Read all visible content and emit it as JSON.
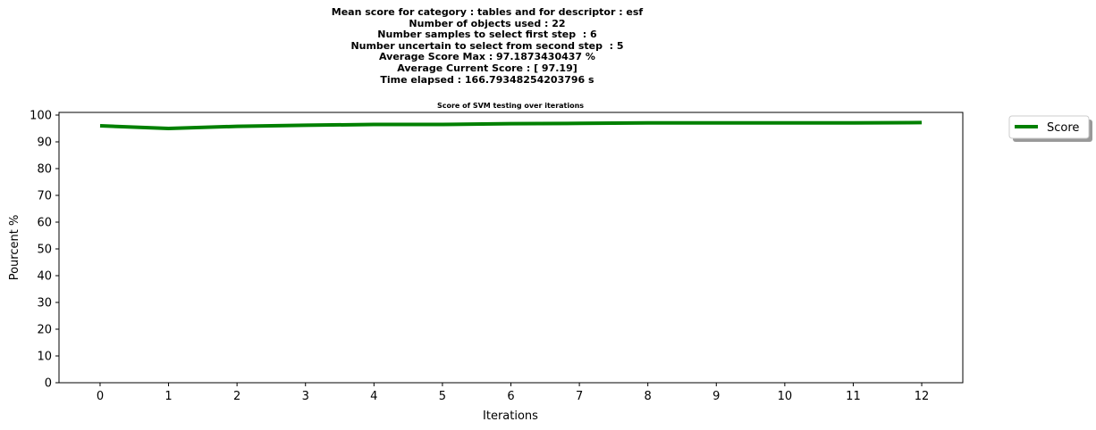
{
  "header": {
    "lines": [
      "Mean score for category : tables and for descriptor : esf",
      "Number of objects used : 22",
      "Number samples to select first step  : 6",
      "Number uncertain to select from second step  : 5",
      "Average Score Max : 97.1873430437 %",
      "Average Current Score : [ 97.19]",
      "Time elapsed : 166.79348254203796 s"
    ]
  },
  "chart_data": {
    "type": "line",
    "title": "Score of SVM testing over iterations",
    "xlabel": "Iterations",
    "ylabel": "Pourcent %",
    "x": [
      0,
      1,
      2,
      3,
      4,
      5,
      6,
      7,
      8,
      9,
      10,
      11,
      12
    ],
    "xticks": [
      "0",
      "1",
      "2",
      "3",
      "4",
      "5",
      "6",
      "7",
      "8",
      "9",
      "10",
      "11",
      "12"
    ],
    "yticks": [
      "0",
      "10",
      "20",
      "30",
      "40",
      "50",
      "60",
      "70",
      "80",
      "90",
      "100"
    ],
    "xlim": [
      -0.6,
      12.6
    ],
    "ylim": [
      0,
      101
    ],
    "series": [
      {
        "name": "Score",
        "color": "#008000",
        "values": [
          96.0,
          95.0,
          95.8,
          96.2,
          96.5,
          96.5,
          96.8,
          96.9,
          97.1,
          97.1,
          97.1,
          97.1,
          97.19
        ]
      }
    ],
    "legend": "outside-top-right",
    "grid": false
  }
}
